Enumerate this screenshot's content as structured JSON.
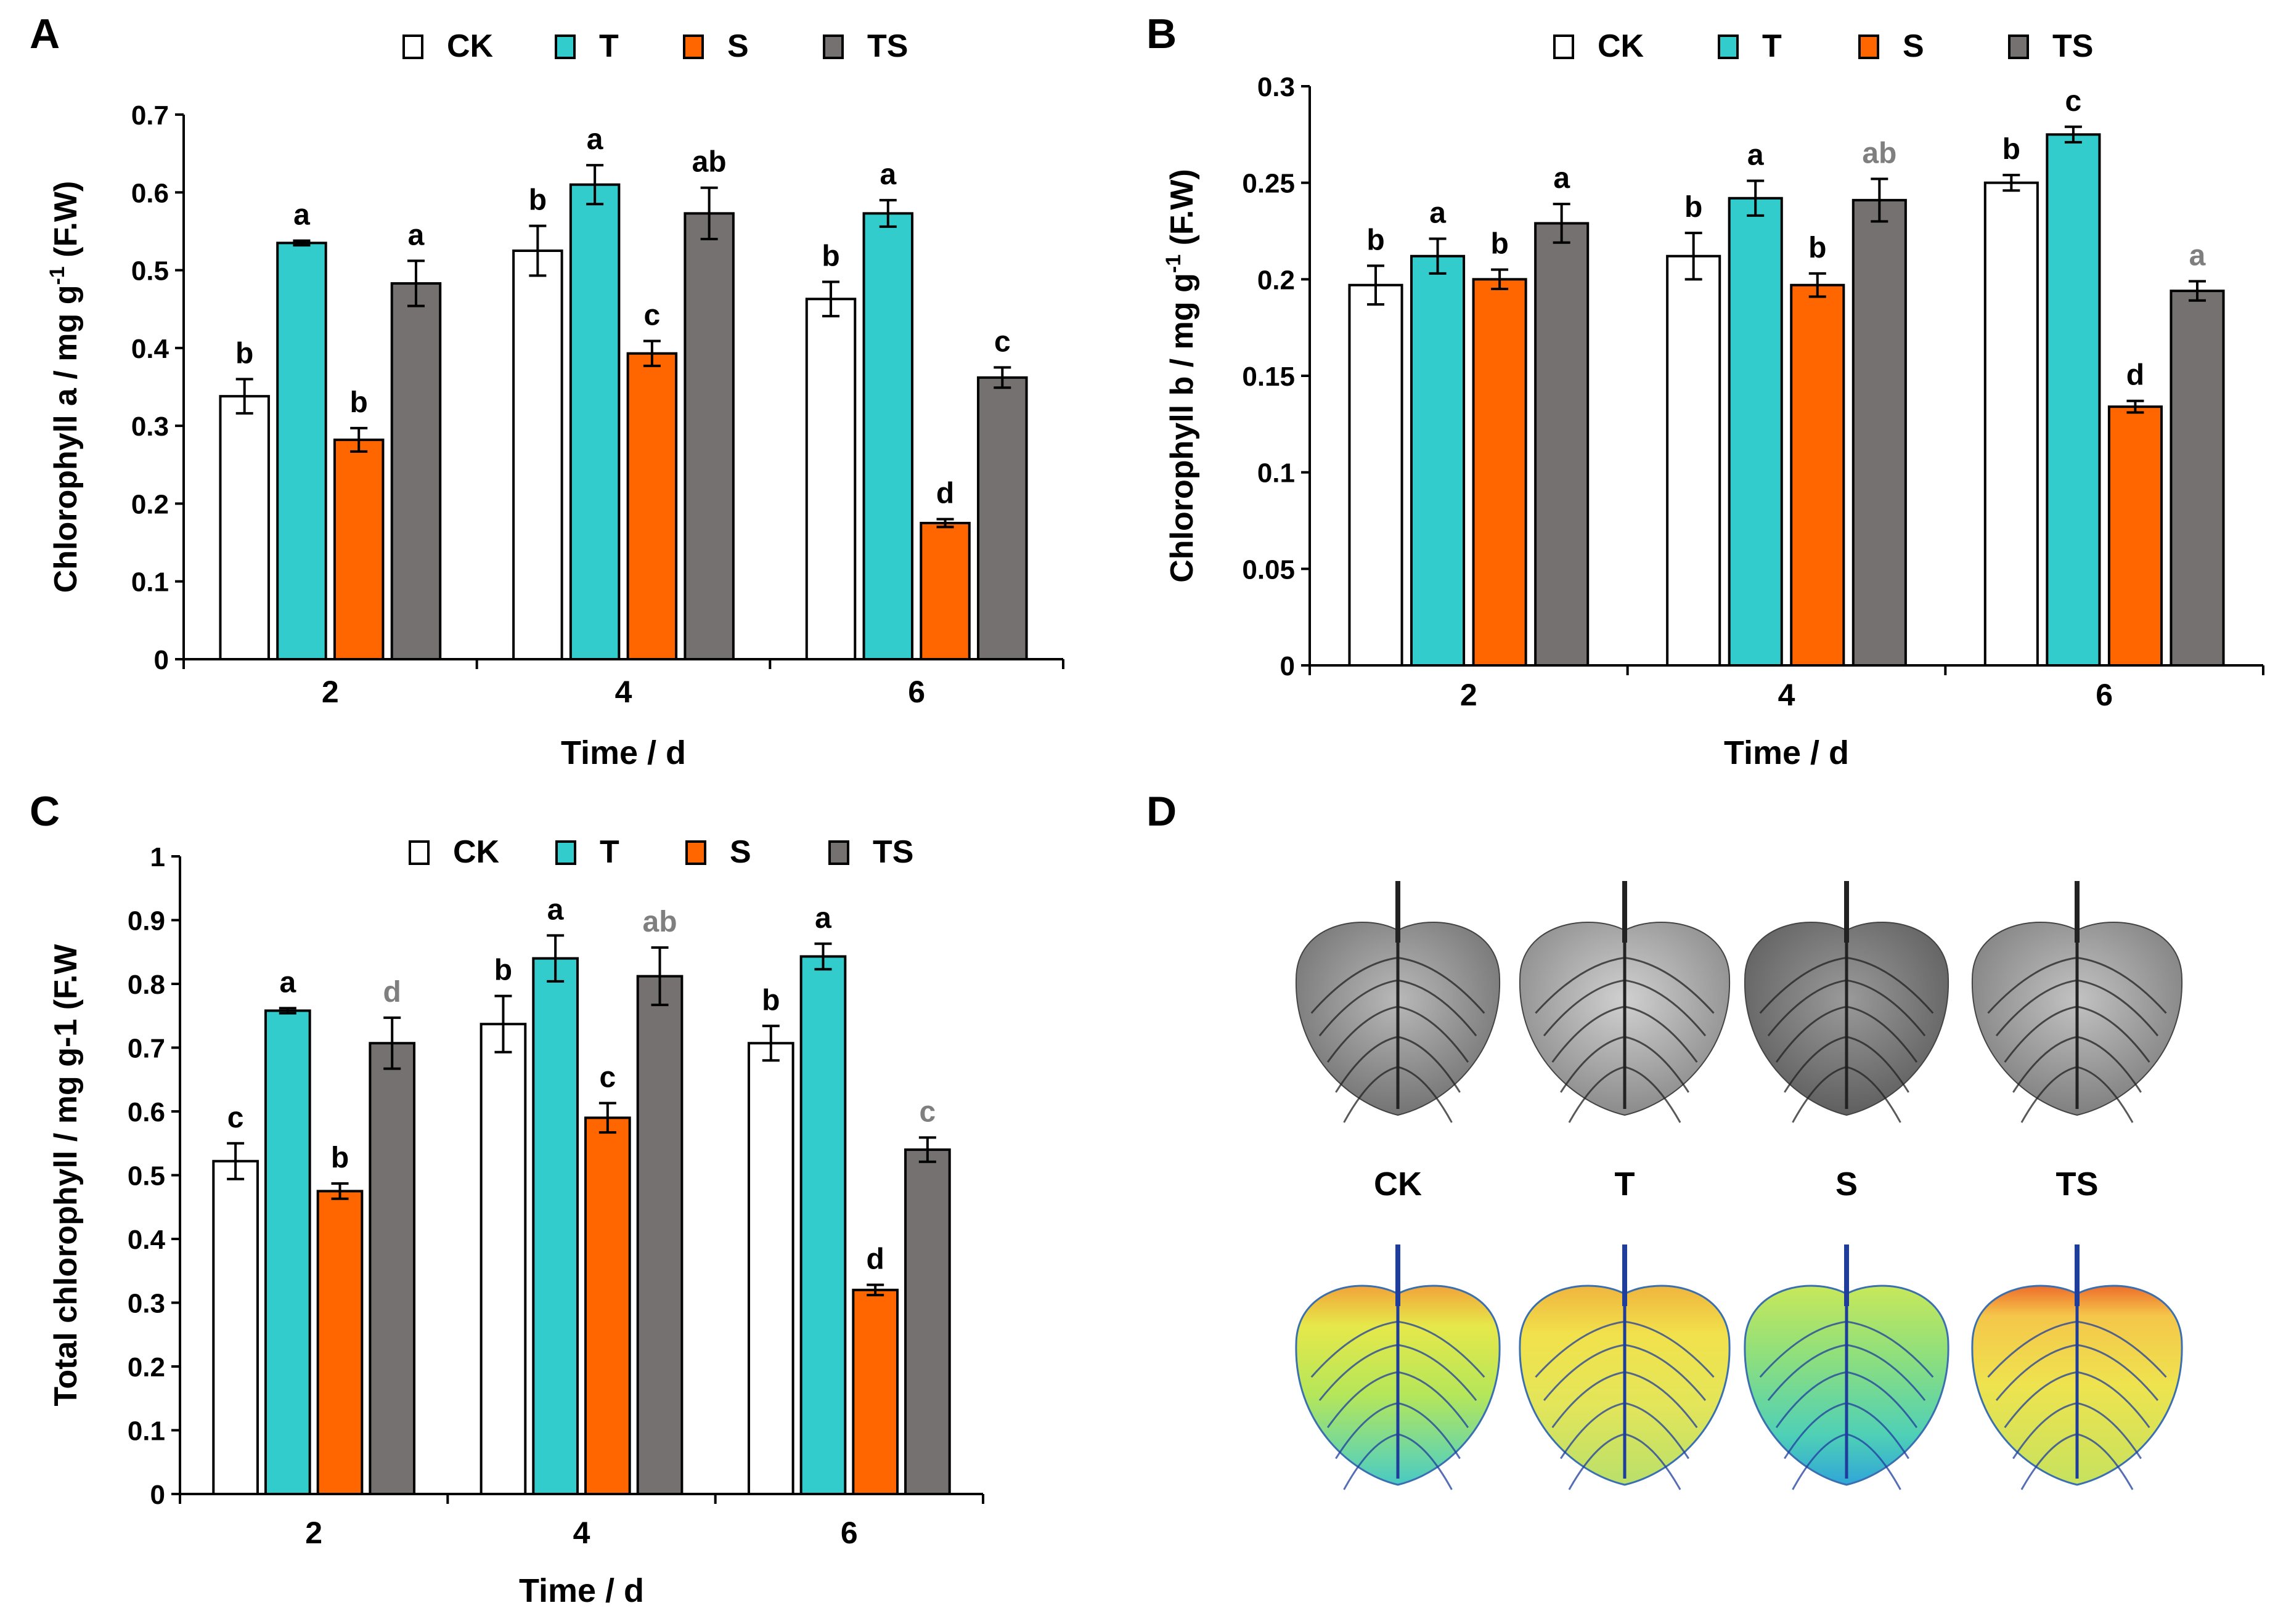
{
  "figure": {
    "panel_letters": [
      "A",
      "B",
      "C",
      "D"
    ],
    "colors": {
      "CK": "#ffffff",
      "T": "#33cccc",
      "S": "#ff6600",
      "TS": "#767171",
      "stroke": "#000000",
      "gray_letter": "#7f7f7f"
    }
  },
  "chart_data": [
    {
      "type": "bar",
      "panel": "A",
      "title": "",
      "xlabel": "Time / d",
      "ylabel": "Chlorophyll a / mg g",
      "ylabel_sup": "-1",
      "ylabel_tail": " (F.W)",
      "categories": [
        "2",
        "4",
        "6"
      ],
      "ylim": [
        0,
        0.7
      ],
      "yticks": [
        "0",
        "0.1",
        "0.2",
        "0.3",
        "0.4",
        "0.5",
        "0.6",
        "0.7"
      ],
      "legend": [
        "CK",
        "T",
        "S",
        "TS"
      ],
      "series": [
        {
          "name": "CK",
          "values": [
            0.338,
            0.525,
            0.463
          ],
          "errors": [
            0.022,
            0.032,
            0.022
          ],
          "letters": [
            "b",
            "b",
            "b"
          ],
          "letter_gray": [
            false,
            false,
            false
          ]
        },
        {
          "name": "T",
          "values": [
            0.535,
            0.61,
            0.573
          ],
          "errors": [
            0.003,
            0.025,
            0.017
          ],
          "letters": [
            "a",
            "a",
            "a"
          ],
          "letter_gray": [
            false,
            false,
            false
          ]
        },
        {
          "name": "S",
          "values": [
            0.282,
            0.393,
            0.175
          ],
          "errors": [
            0.015,
            0.016,
            0.005
          ],
          "letters": [
            "b",
            "c",
            "d"
          ],
          "letter_gray": [
            false,
            false,
            false
          ]
        },
        {
          "name": "TS",
          "values": [
            0.483,
            0.573,
            0.362
          ],
          "errors": [
            0.029,
            0.033,
            0.013
          ],
          "letters": [
            "a",
            "ab",
            "c"
          ],
          "letter_gray": [
            false,
            false,
            false
          ]
        }
      ]
    },
    {
      "type": "bar",
      "panel": "B",
      "title": "",
      "xlabel": "Time / d",
      "ylabel": "Chlorophyll b / mg g",
      "ylabel_sup": "-1",
      "ylabel_tail": " (F.W)",
      "categories": [
        "2",
        "4",
        "6"
      ],
      "ylim": [
        0,
        0.3
      ],
      "yticks": [
        "0",
        "0.05",
        "0.1",
        "0.15",
        "0.2",
        "0.25",
        "0.3"
      ],
      "legend": [
        "CK",
        "T",
        "S",
        "TS"
      ],
      "series": [
        {
          "name": "CK",
          "values": [
            0.197,
            0.212,
            0.25
          ],
          "errors": [
            0.01,
            0.012,
            0.004
          ],
          "letters": [
            "b",
            "b",
            "b"
          ],
          "letter_gray": [
            false,
            false,
            false
          ]
        },
        {
          "name": "T",
          "values": [
            0.212,
            0.242,
            0.275
          ],
          "errors": [
            0.009,
            0.009,
            0.004
          ],
          "letters": [
            "a",
            "a",
            "c"
          ],
          "letter_gray": [
            false,
            false,
            false
          ]
        },
        {
          "name": "S",
          "values": [
            0.2,
            0.197,
            0.134
          ],
          "errors": [
            0.005,
            0.006,
            0.003
          ],
          "letters": [
            "b",
            "b",
            "d"
          ],
          "letter_gray": [
            false,
            false,
            false
          ]
        },
        {
          "name": "TS",
          "values": [
            0.229,
            0.241,
            0.194
          ],
          "errors": [
            0.01,
            0.011,
            0.005
          ],
          "letters": [
            "a",
            "ab",
            "a"
          ],
          "letter_gray": [
            false,
            true,
            true
          ]
        }
      ]
    },
    {
      "type": "bar",
      "panel": "C",
      "title": "",
      "xlabel": "Time / d",
      "ylabel": "Total chlorophyll / mg g-1 (F.W",
      "ylabel_sup": "",
      "ylabel_tail": "",
      "categories": [
        "2",
        "4",
        "6"
      ],
      "ylim": [
        0,
        1
      ],
      "yticks": [
        "0",
        "0.1",
        "0.2",
        "0.3",
        "0.4",
        "0.5",
        "0.6",
        "0.7",
        "0.8",
        "0.9",
        "1"
      ],
      "legend": [
        "CK",
        "T",
        "S",
        "TS"
      ],
      "series": [
        {
          "name": "CK",
          "values": [
            0.522,
            0.737,
            0.707
          ],
          "errors": [
            0.028,
            0.044,
            0.027
          ],
          "letters": [
            "c",
            "b",
            "b"
          ],
          "letter_gray": [
            false,
            false,
            false
          ]
        },
        {
          "name": "T",
          "values": [
            0.758,
            0.84,
            0.843
          ],
          "errors": [
            0.004,
            0.036,
            0.02
          ],
          "letters": [
            "a",
            "a",
            "a"
          ],
          "letter_gray": [
            false,
            false,
            false
          ]
        },
        {
          "name": "S",
          "values": [
            0.475,
            0.59,
            0.32
          ],
          "errors": [
            0.012,
            0.023,
            0.008
          ],
          "letters": [
            "b",
            "c",
            "d"
          ],
          "letter_gray": [
            false,
            false,
            false
          ]
        },
        {
          "name": "TS",
          "values": [
            0.707,
            0.812,
            0.54
          ],
          "errors": [
            0.04,
            0.045,
            0.019
          ],
          "letters": [
            "d",
            "ab",
            "c"
          ],
          "letter_gray": [
            true,
            true,
            true
          ]
        }
      ]
    }
  ],
  "panel_d": {
    "image_description_label": "leaf images",
    "labels": [
      "CK",
      "T",
      "S",
      "TS"
    ]
  }
}
